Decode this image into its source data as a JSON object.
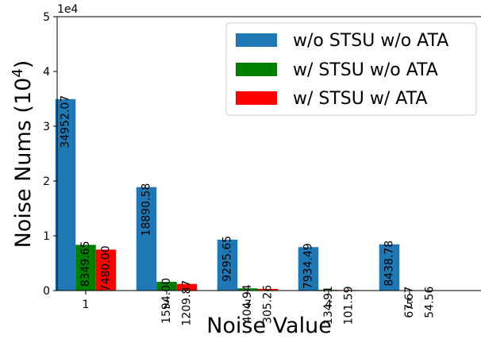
{
  "chart_data": {
    "type": "bar",
    "xlabel": "Noise Value",
    "ylabel": "Noise Nums (10",
    "ylabel_sup": "4",
    "ylabel_end": ")",
    "y_offset_text": "1e4",
    "categories": [
      "1",
      "2",
      "3",
      "4",
      "5"
    ],
    "ylim": [
      0,
      50000
    ],
    "y_ticks": [
      0,
      10000,
      20000,
      30000,
      40000,
      50000
    ],
    "y_tick_labels": [
      "0",
      "1",
      "2",
      "3",
      "4",
      "5"
    ],
    "legend_position": "top-right",
    "grid": false,
    "series": [
      {
        "name": "w/o STSU w/o ATA",
        "color": "#1f77b4",
        "values": [
          34952.07,
          18890.58,
          9295.65,
          7934.49,
          8438.78
        ],
        "labels": [
          "34952.07",
          "18890.58",
          "9295.65",
          "7934.49",
          "8438.78"
        ]
      },
      {
        "name": "w/ STSU w/o ATA",
        "color": "#008000",
        "values": [
          8349.65,
          1594.0,
          404.94,
          134.91,
          67.67
        ],
        "labels": [
          "8349.65",
          "1594.00",
          "404.94",
          "134.91",
          "67.67"
        ]
      },
      {
        "name": "w/ STSU w/ ATA",
        "color": "#ff0000",
        "values": [
          7480.0,
          1209.87,
          305.26,
          101.59,
          54.56
        ],
        "labels": [
          "7480.00",
          "1209.87",
          "305.26",
          "101.59",
          "54.56"
        ]
      }
    ]
  }
}
